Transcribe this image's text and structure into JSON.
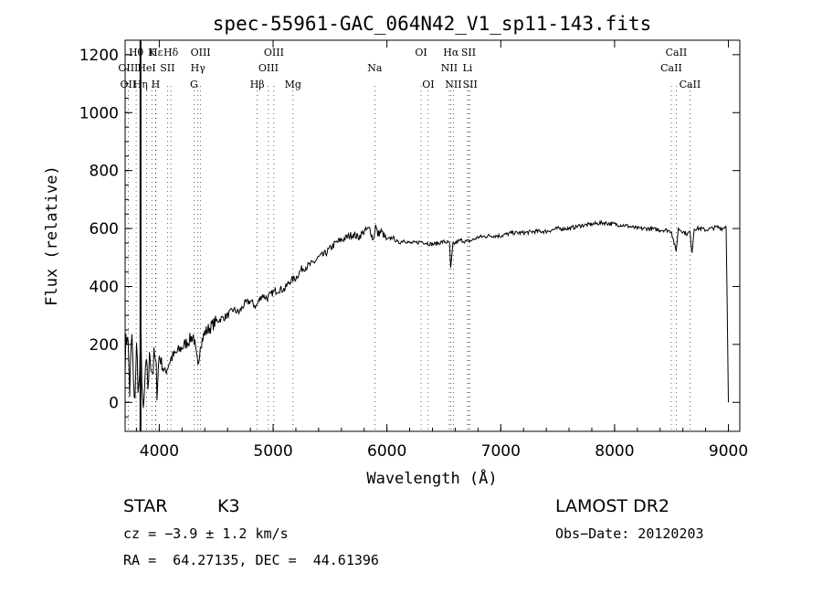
{
  "chart_data": {
    "type": "line",
    "title": "spec-55961-GAC_064N42_V1_sp11-143.fits",
    "xlabel": "Wavelength (Å)",
    "ylabel": "Flux (relative)",
    "xlim": [
      3700,
      9100
    ],
    "ylim": [
      -100,
      1250
    ],
    "xticks": [
      4000,
      5000,
      6000,
      7000,
      8000,
      9000
    ],
    "yticks": [
      0,
      200,
      400,
      600,
      800,
      1000,
      1200
    ],
    "grid": false,
    "series": [
      {
        "x": [
          3700,
          3720,
          3740,
          3760,
          3780,
          3800,
          3820,
          3840,
          3860,
          3880,
          3900,
          3920,
          3940,
          3960,
          3980,
          4000,
          4050,
          4100,
          4150,
          4200,
          4250,
          4300,
          4340,
          4360,
          4400,
          4450,
          4500,
          4550,
          4600,
          4650,
          4700,
          4750,
          4800,
          4850,
          4900,
          4950,
          5000,
          5050,
          5100,
          5150,
          5200,
          5250,
          5300,
          5350,
          5400,
          5450,
          5500,
          5550,
          5600,
          5650,
          5700,
          5750,
          5800,
          5850,
          5880,
          5900,
          5920,
          5950,
          6000,
          6050,
          6100,
          6150,
          6200,
          6250,
          6300,
          6350,
          6400,
          6450,
          6500,
          6550,
          6560,
          6580,
          6600,
          6650,
          6700,
          6750,
          6800,
          6900,
          7000,
          7100,
          7200,
          7300,
          7400,
          7500,
          7600,
          7700,
          7800,
          7900,
          8000,
          8100,
          8200,
          8300,
          8400,
          8450,
          8500,
          8540,
          8560,
          8600,
          8640,
          8660,
          8680,
          8700,
          8750,
          8800,
          8850,
          8900,
          8950,
          8980,
          9000
        ],
        "y": [
          150,
          260,
          40,
          230,
          -20,
          180,
          40,
          200,
          -70,
          120,
          60,
          170,
          110,
          150,
          60,
          160,
          100,
          150,
          170,
          190,
          210,
          230,
          120,
          200,
          240,
          260,
          280,
          290,
          300,
          320,
          310,
          340,
          350,
          330,
          370,
          360,
          380,
          390,
          390,
          420,
          430,
          460,
          470,
          480,
          500,
          510,
          530,
          550,
          560,
          570,
          580,
          570,
          590,
          600,
          560,
          610,
          580,
          590,
          560,
          570,
          550,
          560,
          550,
          550,
          555,
          550,
          545,
          550,
          555,
          550,
          460,
          545,
          550,
          560,
          555,
          560,
          570,
          575,
          575,
          585,
          585,
          590,
          590,
          600,
          600,
          610,
          615,
          620,
          615,
          610,
          600,
          600,
          595,
          595,
          590,
          520,
          600,
          590,
          580,
          590,
          520,
          600,
          600,
          595,
          600,
          605,
          600,
          610,
          0
        ]
      }
    ],
    "line_labels": [
      {
        "text": "Hε",
        "x": 3970,
        "row": 1
      },
      {
        "text": "Hθ",
        "x": 3797,
        "row": 1
      },
      {
        "text": "K",
        "x": 3934,
        "row": 1
      },
      {
        "text": "Hδ",
        "x": 4102,
        "row": 1
      },
      {
        "text": "OIII",
        "x": 4363,
        "row": 1
      },
      {
        "text": "OIII",
        "x": 5007,
        "row": 1
      },
      {
        "text": "OI",
        "x": 6300,
        "row": 1
      },
      {
        "text": "Hα",
        "x": 6563,
        "row": 1
      },
      {
        "text": "SII",
        "x": 6717,
        "row": 1
      },
      {
        "text": "CaII",
        "x": 8542,
        "row": 1
      },
      {
        "text": "OIII",
        "x": 3727,
        "row": 2
      },
      {
        "text": "HeI",
        "x": 3889,
        "row": 2
      },
      {
        "text": "SII",
        "x": 4072,
        "row": 2
      },
      {
        "text": "Hγ",
        "x": 4340,
        "row": 2
      },
      {
        "text": "OIII",
        "x": 4959,
        "row": 2
      },
      {
        "text": "Na",
        "x": 5893,
        "row": 2
      },
      {
        "text": "NII",
        "x": 6548,
        "row": 2
      },
      {
        "text": "Li",
        "x": 6708,
        "row": 2
      },
      {
        "text": "CaII",
        "x": 8498,
        "row": 2
      },
      {
        "text": "OII",
        "x": 3727,
        "row": 3
      },
      {
        "text": "Hη",
        "x": 3835,
        "row": 3
      },
      {
        "text": "H",
        "x": 3968,
        "row": 3
      },
      {
        "text": "G",
        "x": 4305,
        "row": 3
      },
      {
        "text": "Hβ",
        "x": 4861,
        "row": 3
      },
      {
        "text": "Mg",
        "x": 5175,
        "row": 3
      },
      {
        "text": "OI",
        "x": 6363,
        "row": 3
      },
      {
        "text": "NII",
        "x": 6584,
        "row": 3
      },
      {
        "text": "SII",
        "x": 6731,
        "row": 3
      },
      {
        "text": "CaII",
        "x": 8662,
        "row": 3
      }
    ],
    "line_markers": [
      3727,
      3797,
      3835,
      3889,
      3934,
      3968,
      3970,
      4072,
      4102,
      4305,
      4340,
      4363,
      4861,
      4959,
      5007,
      5175,
      5893,
      6300,
      6363,
      6548,
      6563,
      6584,
      6708,
      6717,
      6731,
      8498,
      8542,
      8662
    ]
  },
  "info": {
    "object_class": "STAR",
    "subclass": "K3",
    "survey": "LAMOST DR2",
    "redshift_line": "cz = −3.9 ± 1.2 km/s",
    "obs_date": "Obs−Date: 20120203",
    "coords": "RA =  64.27135, DEC =  44.61396"
  }
}
